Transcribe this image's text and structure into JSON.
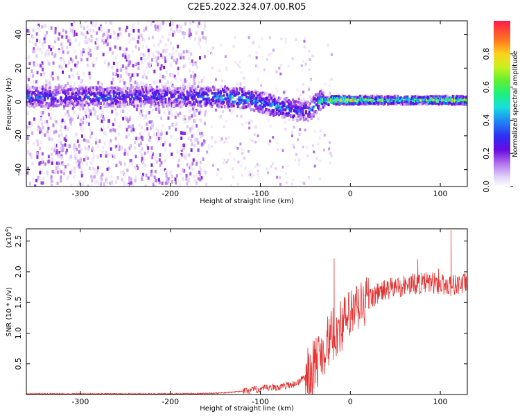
{
  "title": "C2E5.2022.324.07.00.R05",
  "colors": {
    "snr_line": "#e53030",
    "colormap": [
      "#ffffff",
      "#e6d6f7",
      "#c79af0",
      "#9b45e6",
      "#6a0ae0",
      "#3a1cf0",
      "#1e78f5",
      "#16d9e6",
      "#36f07a",
      "#b0f030",
      "#ffd21e",
      "#ff7a1e",
      "#ff1a3a"
    ]
  },
  "chart_data": [
    {
      "type": "heatmap",
      "title": "C2E5.2022.324.07.00.R05",
      "xlabel": "Height of straight line (km)",
      "ylabel": "Frequency (Hz)",
      "xlim": [
        -360,
        130
      ],
      "ylim": [
        -50,
        48
      ],
      "x_ticks": [
        -300,
        -200,
        -100,
        0,
        100
      ],
      "y_ticks": [
        -40,
        -20,
        0,
        20,
        40
      ],
      "colorbar": {
        "label": "Normalized spectral amplitude",
        "range": [
          0.0,
          1.0
        ],
        "ticks": [
          "0.0",
          "0.2",
          "0.4",
          "0.6",
          "0.8"
        ]
      },
      "series": [
        {
          "x": [
            -355,
            -330,
            -300,
            -270,
            -240,
            -210,
            -180,
            -160,
            -140,
            -120,
            -100,
            -80,
            -60,
            -45,
            -35,
            -20,
            0,
            20,
            50,
            80,
            110,
            125
          ],
          "y": [
            3,
            3,
            3,
            3,
            3,
            3,
            3,
            3,
            3,
            2,
            0,
            -3,
            -5,
            -5,
            0,
            1,
            1,
            1,
            1,
            1,
            1,
            1
          ],
          "intensity": [
            0.45,
            0.4,
            0.42,
            0.45,
            0.38,
            0.4,
            0.42,
            0.5,
            0.55,
            0.55,
            0.5,
            0.5,
            0.45,
            0.45,
            0.55,
            0.8,
            0.85,
            0.7,
            0.65,
            0.7,
            0.8,
            0.8
          ]
        }
      ]
    },
    {
      "type": "line",
      "xlabel": "Height of straight line (km)",
      "ylabel": "SNR (10 * v/v)",
      "y_multiplier_label": "(x10",
      "y_multiplier_exp": "4",
      "xlim": [
        -360,
        130
      ],
      "ylim": [
        0,
        2.7
      ],
      "x_ticks": [
        -300,
        -200,
        -100,
        0,
        100
      ],
      "y_ticks": [
        0.5,
        1.0,
        1.5,
        2.0,
        2.5
      ],
      "series": [
        {
          "x": [
            -360,
            -300,
            -200,
            -150,
            -120,
            -100,
            -80,
            -60,
            -45,
            -35,
            -25,
            -15,
            -5,
            5,
            15,
            25,
            35,
            50,
            70,
            90,
            100,
            110,
            120,
            130
          ],
          "y": [
            0.01,
            0.01,
            0.01,
            0.02,
            0.05,
            0.09,
            0.12,
            0.18,
            0.35,
            0.6,
            0.85,
            1.05,
            1.2,
            1.35,
            1.5,
            1.6,
            1.68,
            1.75,
            1.8,
            1.82,
            1.8,
            1.78,
            1.8,
            1.8
          ],
          "peaks": [
            {
              "x": -18,
              "y": 2.22
            },
            {
              "x": 112,
              "y": 2.68
            },
            {
              "x": 75,
              "y": 2.2
            },
            {
              "x": 98,
              "y": 2.05
            }
          ]
        }
      ]
    }
  ]
}
